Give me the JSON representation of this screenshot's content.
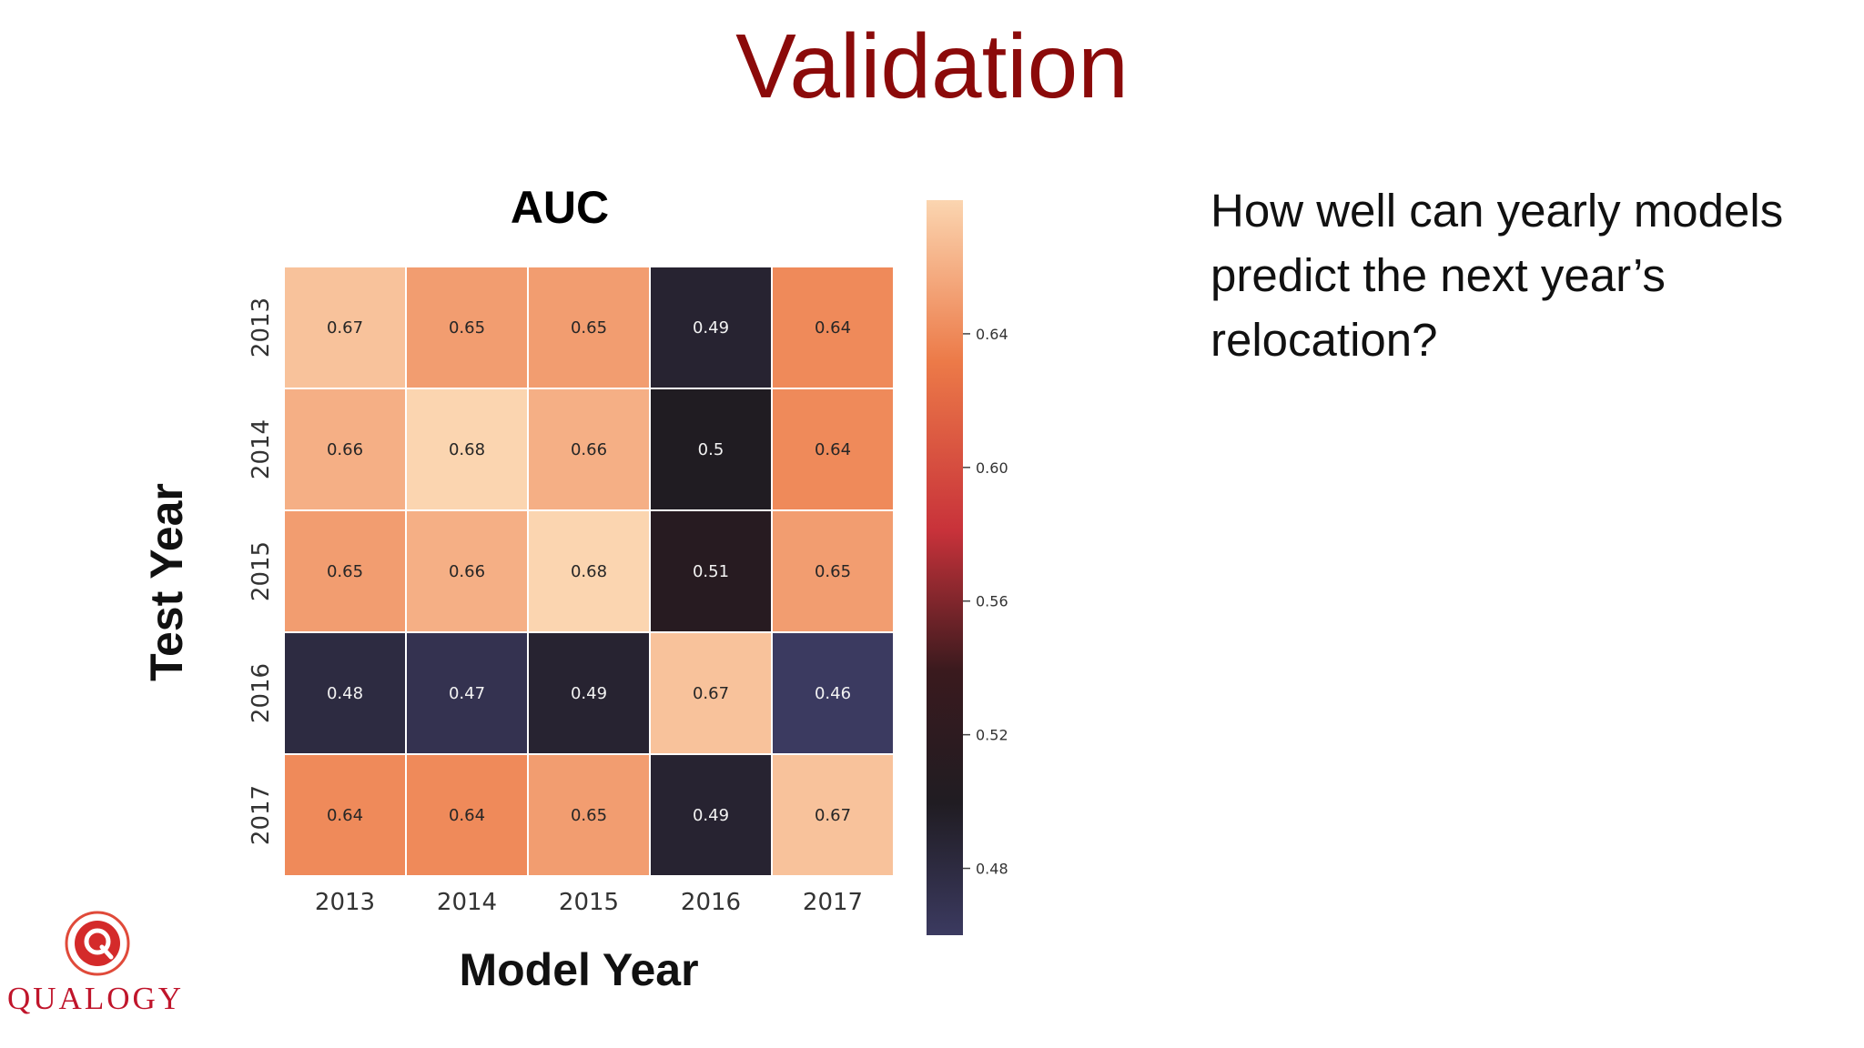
{
  "slide": {
    "title": "Validation",
    "question": "How well can yearly models predict the next year’s relocation?",
    "logo_text": "QUALOGY"
  },
  "colors": {
    "title": "#8b0a0a",
    "brand": "#c0152b",
    "colormap": "icefire"
  },
  "chart_data": {
    "type": "heatmap",
    "title": "AUC",
    "xlabel": "Model Year",
    "ylabel": "Test Year",
    "x": [
      "2013",
      "2014",
      "2015",
      "2016",
      "2017"
    ],
    "y": [
      "2013",
      "2014",
      "2015",
      "2016",
      "2017"
    ],
    "values": [
      [
        0.67,
        0.65,
        0.65,
        0.49,
        0.64
      ],
      [
        0.66,
        0.68,
        0.66,
        0.5,
        0.64
      ],
      [
        0.65,
        0.66,
        0.68,
        0.51,
        0.65
      ],
      [
        0.48,
        0.47,
        0.49,
        0.67,
        0.46
      ],
      [
        0.64,
        0.64,
        0.65,
        0.49,
        0.67
      ]
    ],
    "colorbar": {
      "ticks": [
        "0.48",
        "0.52",
        "0.56",
        "0.60",
        "0.64"
      ],
      "range": [
        0.46,
        0.68
      ]
    }
  }
}
